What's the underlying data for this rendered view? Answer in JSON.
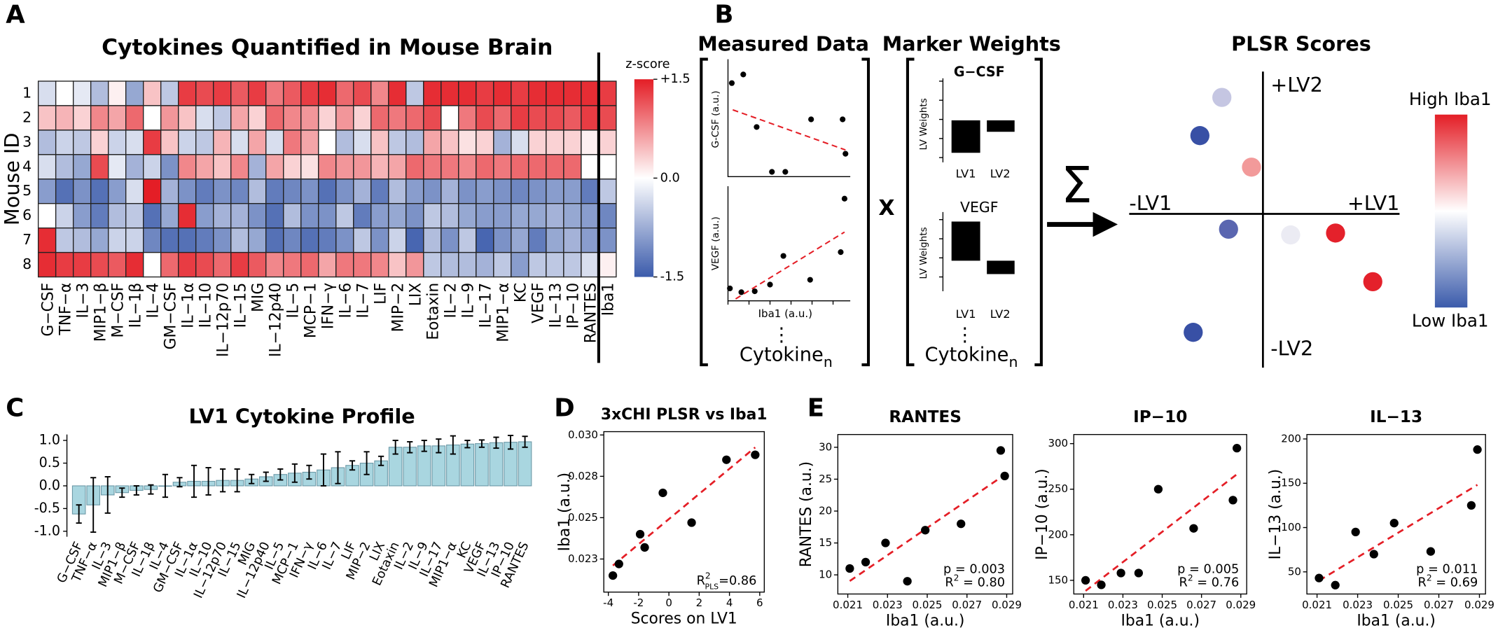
{
  "panel_labels": [
    "A",
    "B",
    "C",
    "D",
    "E"
  ],
  "chart_data": [
    {
      "type": "heatmap",
      "title": "Cytokines Quantified in Mouse Brain",
      "ylabel": "Mouse ID",
      "rows": [
        "1",
        "2",
        "3",
        "4",
        "5",
        "6",
        "7",
        "8"
      ],
      "categories": [
        "G−CSF",
        "TNF−α",
        "IL−3",
        "MIP1−β",
        "M−CSF",
        "IL−1β",
        "IL−4",
        "GM−CSF",
        "IL−1α",
        "IL−10",
        "IL−12p70",
        "IL−15",
        "MIG",
        "IL−12p40",
        "IL−5",
        "MCP−1",
        "IFN−γ",
        "IL−6",
        "IL−7",
        "LIF",
        "MIP−2",
        "LIX",
        "Eotaxin",
        "IL−2",
        "IL−9",
        "IL−17",
        "MIP1−α",
        "KC",
        "VEGF",
        "IL−13",
        "IP−10",
        "RANTES",
        "Iba1"
      ],
      "values": [
        [
          -0.3,
          0,
          -0.2,
          -0.6,
          0.1,
          -0.8,
          0.4,
          -0.5,
          1.3,
          1.2,
          1.3,
          1.1,
          1.3,
          0.9,
          1.1,
          1.3,
          1.4,
          1.0,
          1.2,
          0.8,
          1.4,
          -0.5,
          1.4,
          1.4,
          1.4,
          1.3,
          1.4,
          1.3,
          1.4,
          1.4,
          1.4,
          1.4,
          1.3
        ],
        [
          0.4,
          0.5,
          0.3,
          0.8,
          0.6,
          1.0,
          0,
          0.7,
          0.4,
          -0.3,
          -0.5,
          0.6,
          0.3,
          1.0,
          0.8,
          0.7,
          0.3,
          0.7,
          0.3,
          1.0,
          0.9,
          1.0,
          1.2,
          0,
          0.9,
          1.2,
          1.0,
          1.3,
          1.2,
          1.2,
          1.1,
          1.3,
          1.2
        ],
        [
          -0.6,
          -0.4,
          -0.5,
          0.3,
          -0.4,
          -0.3,
          1.3,
          0.4,
          -0.4,
          -0.5,
          0.5,
          -0.3,
          0.6,
          -0.3,
          0.9,
          0.6,
          0,
          -0.6,
          -0.3,
          0.4,
          -0.5,
          -0.6,
          0.6,
          0.4,
          0.2,
          0.3,
          -0.7,
          -0.3,
          0.3,
          0.3,
          0.3,
          0.1,
          0.3
        ],
        [
          -0.3,
          -0.6,
          -0.8,
          1.2,
          -0.2,
          -0.7,
          -0.4,
          -1.0,
          0.8,
          0.6,
          0.4,
          0.8,
          -0.7,
          0.6,
          0.3,
          0.2,
          0.8,
          0.7,
          0.7,
          0.5,
          0.6,
          1.0,
          0.9,
          0.9,
          0.8,
          1.0,
          0.9,
          1.0,
          1.0,
          1.0,
          1.0,
          0,
          0
        ],
        [
          -0.9,
          -1.3,
          -1.0,
          -1.3,
          -0.9,
          -0.3,
          1.5,
          -0.7,
          -1.0,
          -1.2,
          -1.0,
          -1.1,
          -0.6,
          -1.2,
          -1.1,
          -1.0,
          -1.3,
          -1.0,
          -0.7,
          -1.2,
          -0.6,
          -0.9,
          -1.0,
          -0.7,
          -1.0,
          -0.9,
          -1.0,
          -1.1,
          -1.0,
          -0.9,
          -0.9,
          -1.2,
          -0.5
        ],
        [
          0,
          -0.4,
          -0.9,
          -1.2,
          -0.6,
          -0.5,
          -1.3,
          -0.8,
          1.4,
          -0.9,
          -0.7,
          -0.7,
          -1.0,
          -1.3,
          -0.6,
          -1.0,
          -1.0,
          -0.5,
          -1.2,
          -0.9,
          -0.8,
          -1.0,
          -0.5,
          -0.6,
          -0.8,
          -0.9,
          -0.9,
          -0.8,
          -0.8,
          -0.7,
          -0.8,
          -0.9,
          -1.1
        ],
        [
          1.4,
          -0.5,
          -0.6,
          -0.8,
          -0.4,
          -0.4,
          -1.1,
          -1.3,
          -1.3,
          -1.2,
          -1.0,
          -0.6,
          -0.8,
          -1.3,
          -1.1,
          -1.3,
          -1.2,
          -1.0,
          -0.5,
          -1.0,
          -0.4,
          -1.4,
          -0.6,
          -1.0,
          -0.5,
          -1.4,
          -1.0,
          -0.8,
          -1.2,
          -0.8,
          -0.7,
          -0.9,
          -1.0
        ],
        [
          1.4,
          1.3,
          1.3,
          1.2,
          1.1,
          1.4,
          0,
          1.0,
          1.3,
          1.2,
          1.0,
          1.3,
          1.1,
          0.8,
          0.9,
          1.0,
          0.6,
          0.9,
          0.9,
          0.8,
          0.4,
          0.7,
          -0.5,
          -0.6,
          -0.6,
          -0.7,
          -0.5,
          -0.9,
          -0.5,
          -0.5,
          -0.5,
          -0.3,
          0.1
        ]
      ],
      "colorbar": {
        "title": "z-score",
        "zlim": [
          -1.5,
          1.5
        ],
        "ticks": [
          {
            "value": 1.5,
            "label": "+1.5"
          },
          {
            "value": 0,
            "label": "0.0"
          },
          {
            "value": -1.5,
            "label": "-1.5"
          }
        ],
        "colors": [
          "#3b5bab",
          "#ffffff",
          "#e41e26"
        ]
      }
    },
    {
      "type": "bar",
      "title": "LV1 Cytokine Profile",
      "categories": [
        "G−CSF",
        "TNF−α",
        "IL−3",
        "MIP1−β",
        "M−CSF",
        "IL−1β",
        "IL−4",
        "GM−CSF",
        "IL−1α",
        "IL−10",
        "IL−12p70",
        "IL−15",
        "MIG",
        "IL−12p40",
        "IL−5",
        "MCP−1",
        "IFN−γ",
        "IL−6",
        "IL−7",
        "LIF",
        "MIP−2",
        "LIX",
        "Eotaxin",
        "IL−2",
        "IL−9",
        "IL−17",
        "MIP1−α",
        "KC",
        "VEGF",
        "IL−13",
        "IP−10",
        "RANTES"
      ],
      "values": [
        -0.62,
        -0.42,
        -0.2,
        -0.15,
        -0.1,
        -0.08,
        0,
        0.08,
        0.1,
        0.1,
        0.12,
        0.12,
        0.15,
        0.2,
        0.25,
        0.28,
        0.3,
        0.35,
        0.4,
        0.45,
        0.5,
        0.55,
        0.85,
        0.85,
        0.88,
        0.88,
        0.9,
        0.92,
        0.93,
        0.95,
        0.96,
        0.97
      ],
      "errors": [
        0.2,
        0.6,
        0.4,
        0.1,
        0.1,
        0.1,
        0.25,
        0.1,
        0.35,
        0.3,
        0.25,
        0.25,
        0.1,
        0.1,
        0.12,
        0.2,
        0.15,
        0.35,
        0.35,
        0.1,
        0.25,
        0.1,
        0.15,
        0.12,
        0.12,
        0.15,
        0.2,
        0.08,
        0.08,
        0.12,
        0.15,
        0.12
      ],
      "color": "#a9d6e0",
      "ylim": [
        -1.12,
        1.13
      ],
      "yticks": [
        {
          "value": 1,
          "label": "1.0"
        },
        0.5,
        {
          "value": 0,
          "label": "0.0"
        },
        -0.5,
        {
          "value": -1,
          "label": "-1.0"
        }
      ]
    },
    {
      "type": "scatter",
      "title": "3xCHI PLSR vs Iba1",
      "xlabel": "Scores on LV1",
      "ylabel": "Iba1 (a.u.)",
      "x": [
        -3.7,
        -3.3,
        -1.9,
        -1.6,
        -0.4,
        1.5,
        3.8,
        5.7
      ],
      "values": [
        0.0215,
        0.0222,
        0.024,
        0.0232,
        0.0265,
        0.0247,
        0.0285,
        0.0288
      ],
      "xlim": [
        -4.3,
        6.3
      ],
      "xticks": [
        -4,
        -2,
        0,
        2,
        4,
        6
      ],
      "ylim": [
        0.0205,
        0.0302
      ],
      "yticks": [
        {
          "value": 0.03,
          "label": "0.030"
        },
        {
          "value": 0.0275,
          "label": "0.028"
        },
        0.025,
        {
          "value": 0.0225,
          "label": "0.023"
        }
      ],
      "color": "#000000",
      "fit_color": "#e41e26",
      "stat": {
        "base": "R",
        "sup": "2",
        "sub": "PLS",
        "rest": "=0.86"
      }
    },
    {
      "type": "scatter",
      "title": "RANTES",
      "xlabel": "Iba1 (a.u.)",
      "ylabel": "RANTES (a.u.)",
      "x": [
        0.0211,
        0.0219,
        0.0229,
        0.024,
        0.0249,
        0.0267,
        0.0287,
        0.0289
      ],
      "values": [
        11,
        12,
        15,
        9,
        17,
        18,
        29.5,
        25.5
      ],
      "xlim": [
        0.0205,
        0.0293
      ],
      "xticks": [
        0.021,
        0.023,
        0.025,
        0.027,
        0.029
      ],
      "ylim": [
        7,
        32
      ],
      "yticks": [
        10,
        15,
        20,
        25,
        30
      ],
      "color": "#000000",
      "fit_color": "#e41e26",
      "p": "p = 0.003",
      "stat": {
        "base": "R",
        "sup": "2",
        "rest": " = 0.80"
      }
    },
    {
      "type": "scatter",
      "title": "IP−10",
      "xlabel": "Iba1 (a.u.)",
      "ylabel": "IP−10 (a.u.)",
      "x": [
        0.0211,
        0.0219,
        0.0229,
        0.0238,
        0.0248,
        0.0266,
        0.0286,
        0.0288
      ],
      "values": [
        150,
        145,
        158,
        158,
        250,
        207,
        238,
        295
      ],
      "xlim": [
        0.0205,
        0.0293
      ],
      "xticks": [
        0.021,
        0.023,
        0.025,
        0.027,
        0.029
      ],
      "ylim": [
        135,
        310
      ],
      "yticks": [
        150,
        200,
        250,
        300
      ],
      "color": "#000000",
      "fit_color": "#e41e26",
      "p": "p = 0.005",
      "stat": {
        "base": "R",
        "sup": "2",
        "rest": " = 0.76"
      }
    },
    {
      "type": "scatter",
      "title": "IL−13",
      "xlabel": "Iba1 (a.u.)",
      "ylabel": "IL−13 (a.u.)",
      "x": [
        0.0211,
        0.0219,
        0.0229,
        0.0238,
        0.0248,
        0.0266,
        0.0286,
        0.0289
      ],
      "values": [
        43,
        35,
        95,
        70,
        105,
        73,
        125,
        188
      ],
      "xlim": [
        0.0205,
        0.0293
      ],
      "xticks": [
        0.021,
        0.023,
        0.025,
        0.027,
        0.029
      ],
      "ylim": [
        25,
        205
      ],
      "yticks": [
        50,
        100,
        150,
        200
      ],
      "color": "#000000",
      "fit_color": "#e41e26",
      "p": "p = 0.011",
      "stat": {
        "base": "R",
        "sup": "2",
        "rest": " = 0.69"
      }
    }
  ],
  "diagram": {
    "measured_data": {
      "title": "Measured Data",
      "plots": [
        {
          "ylabel": "G-CSF (a.u.)"
        },
        {
          "ylabel": "VEGF (a.u.)",
          "xlabel": "Iba1 (a.u.)"
        }
      ],
      "more": "⋮",
      "cytokine": "Cytokine",
      "sub": "n"
    },
    "operator": "X",
    "marker_weights": {
      "title": "Marker Weights",
      "plots": [
        {
          "title": "G−CSF",
          "ylabel": "LV Weights",
          "bars": [
            "LV1",
            "LV2"
          ]
        },
        {
          "title": "VEGF",
          "ylabel": "LV Weights",
          "bars": [
            "LV1",
            "LV2"
          ]
        }
      ],
      "more": "⋮",
      "cytokine": "Cytokine",
      "sub": "n"
    },
    "sum": "Σ",
    "plsr": {
      "title": "PLSR Scores",
      "axes": [
        "+LV2",
        "-LV2",
        "-LV1",
        "+LV1"
      ],
      "colorbar": [
        "High Iba1",
        "Low Iba1"
      ]
    }
  }
}
